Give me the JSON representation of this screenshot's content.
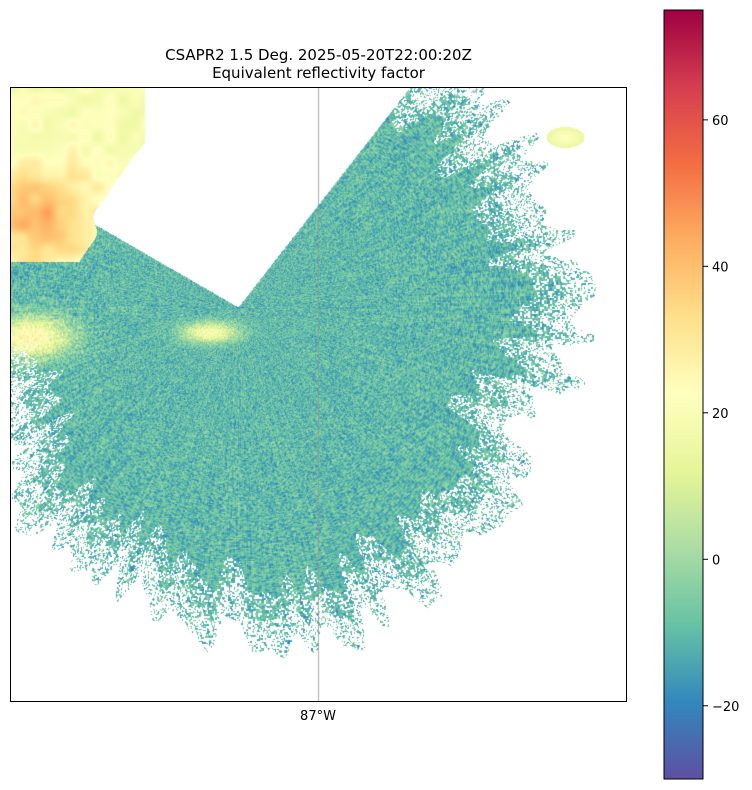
{
  "chart_data": {
    "type": "heatmap",
    "title": "CSAPR2 1.5 Deg. 2025-05-20T22:00:20Z",
    "subtitle": "Equivalent reflectivity factor",
    "xlabel": "",
    "ylabel": "",
    "x_ticks": [
      {
        "value": -87,
        "label": "87°W"
      }
    ],
    "gridlines": "meridian at 87°W",
    "colorbar": {
      "colormap": "Spectral_r",
      "range": [
        -30,
        75
      ],
      "ticks": [
        -20,
        0,
        20,
        40,
        60
      ],
      "tick_labels": [
        "−20",
        "0",
        "20",
        "40",
        "60"
      ],
      "placement": "right"
    },
    "field": "reflectivity",
    "regions": [
      {
        "name": "radar-sector-echoes",
        "typical_value": -10
      },
      {
        "name": "northwest-storm-core",
        "typical_value": 45
      },
      {
        "name": "northwest-stratiform",
        "typical_value": 20
      },
      {
        "name": "west-stratiform-band",
        "typical_value": 25
      },
      {
        "name": "northeast-small-cell",
        "typical_value": 22
      }
    ]
  },
  "colors": {
    "colormap_stops": [
      "#5e4fa2",
      "#3288bd",
      "#66c2a5",
      "#abdda4",
      "#e6f598",
      "#ffffbf",
      "#fee08b",
      "#fdae61",
      "#f46d43",
      "#d53e4f",
      "#9e0142"
    ]
  }
}
